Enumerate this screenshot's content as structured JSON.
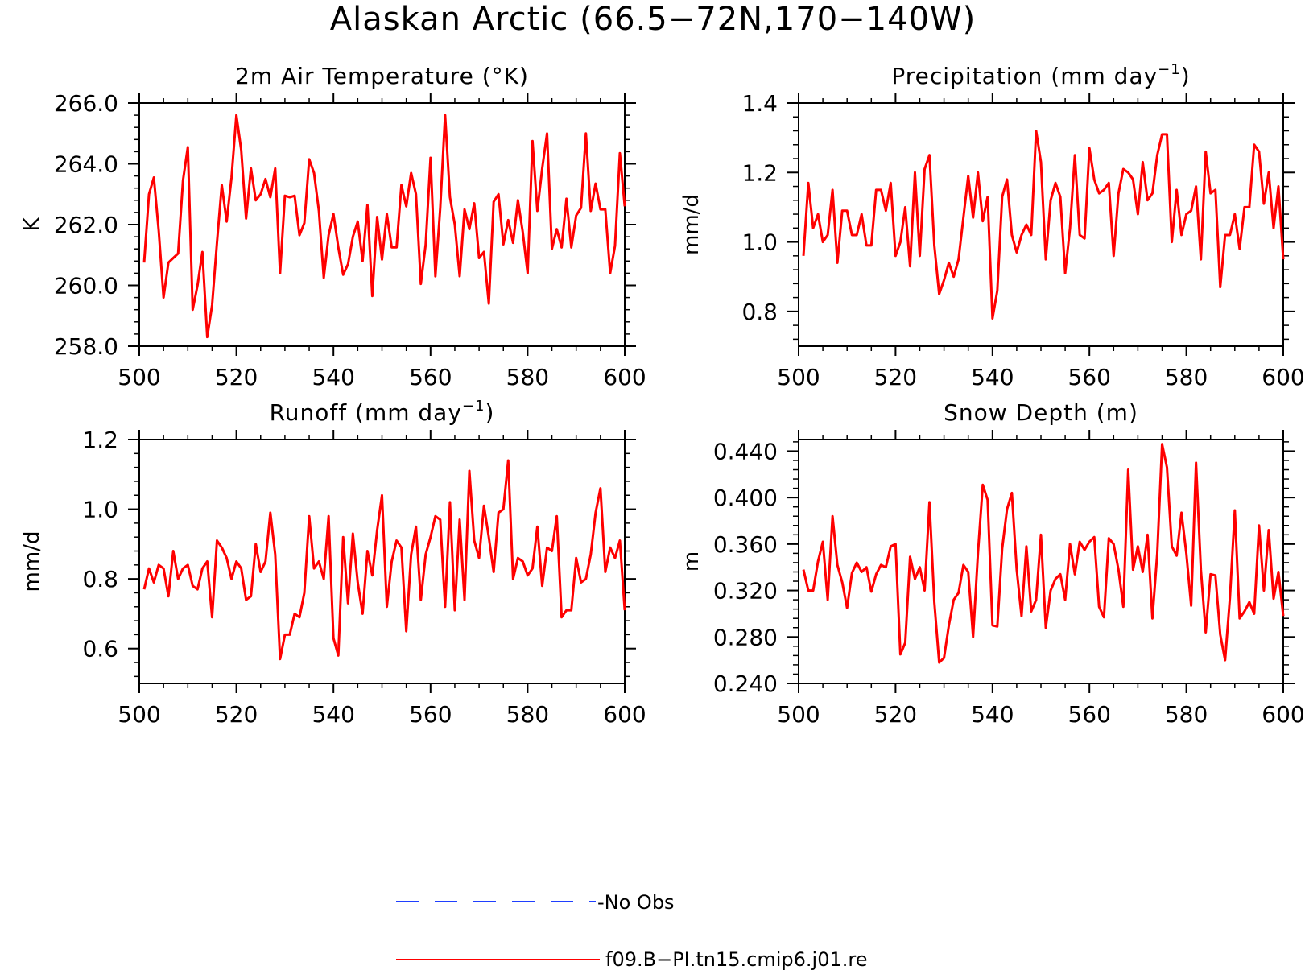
{
  "title": "Alaskan Arctic (66.5−72N,170−140W)",
  "legend": [
    {
      "label": "-No Obs",
      "color": "#1f3fff",
      "dash": true
    },
    {
      "label": "f09.B−PI.tn15.cmip6.j01.re",
      "color": "#ff0000",
      "dash": false
    }
  ],
  "chart_data": [
    {
      "type": "line",
      "title": "2m Air Temperature (°K)",
      "ylabel": "K",
      "xlim": [
        500,
        600
      ],
      "ylim": [
        258,
        266
      ],
      "xticks": [
        500,
        520,
        540,
        560,
        580,
        600
      ],
      "xtick_labels": [
        "500",
        "520",
        "540",
        "560",
        "580",
        "600"
      ],
      "yticks": [
        258,
        260,
        262,
        264,
        266
      ],
      "ytick_labels": [
        "258.0",
        "260.0",
        "262.0",
        "264.0",
        "266.0"
      ],
      "series": [
        {
          "name": "f09.B−PI.tn15.cmip6.j01.re",
          "color": "#ff0000",
          "x_start": 501,
          "values": [
            260.75,
            263.0,
            263.55,
            261.8,
            259.6,
            260.75,
            260.9,
            261.05,
            263.45,
            264.55,
            259.2,
            260.0,
            261.1,
            258.3,
            259.35,
            261.4,
            263.3,
            262.1,
            263.55,
            265.6,
            264.45,
            262.2,
            263.85,
            262.8,
            263.0,
            263.5,
            262.9,
            263.85,
            260.4,
            262.95,
            262.9,
            262.95,
            261.65,
            262.05,
            264.15,
            263.7,
            262.45,
            260.25,
            261.65,
            262.35,
            261.25,
            260.35,
            260.7,
            261.6,
            262.1,
            260.8,
            262.65,
            259.65,
            262.25,
            260.85,
            262.35,
            261.25,
            261.25,
            263.3,
            262.6,
            263.7,
            263.0,
            260.05,
            261.35,
            264.2,
            260.3,
            262.55,
            265.6,
            262.9,
            262.0,
            260.3,
            262.5,
            261.85,
            262.7,
            260.9,
            261.1,
            259.4,
            262.75,
            263.0,
            261.35,
            262.15,
            261.4,
            262.8,
            261.75,
            260.4,
            264.75,
            262.45,
            263.85,
            265.0,
            261.2,
            261.85,
            261.25,
            262.85,
            261.25,
            262.3,
            262.55,
            265.0,
            262.45,
            263.35,
            262.5,
            262.5,
            260.4,
            261.3,
            264.35,
            262.6
          ]
        }
      ]
    },
    {
      "type": "line",
      "title": "Precipitation (mm day−1)",
      "title_text": "Precipitation (mm day",
      "title_sup": "−1",
      "title_close": ")",
      "ylabel": "mm/d",
      "xlim": [
        500,
        600
      ],
      "ylim": [
        0.7,
        1.4
      ],
      "xticks": [
        500,
        520,
        540,
        560,
        580,
        600
      ],
      "xtick_labels": [
        "500",
        "520",
        "540",
        "560",
        "580",
        "600"
      ],
      "yticks": [
        0.8,
        1.0,
        1.2,
        1.4
      ],
      "ytick_labels": [
        "0.8",
        "1.0",
        "1.2",
        "1.4"
      ],
      "series": [
        {
          "name": "f09.B−PI.tn15.cmip6.j01.re",
          "color": "#ff0000",
          "x_start": 501,
          "values": [
            0.96,
            1.17,
            1.04,
            1.08,
            1.0,
            1.02,
            1.15,
            0.94,
            1.09,
            1.09,
            1.02,
            1.02,
            1.08,
            0.99,
            0.99,
            1.15,
            1.15,
            1.09,
            1.17,
            0.96,
            1.0,
            1.1,
            0.93,
            1.2,
            0.96,
            1.21,
            1.25,
            0.99,
            0.85,
            0.89,
            0.94,
            0.9,
            0.95,
            1.07,
            1.19,
            1.07,
            1.2,
            1.06,
            1.13,
            0.78,
            0.86,
            1.13,
            1.18,
            1.02,
            0.97,
            1.02,
            1.05,
            1.02,
            1.32,
            1.23,
            0.95,
            1.12,
            1.17,
            1.13,
            0.91,
            1.04,
            1.25,
            1.02,
            1.01,
            1.27,
            1.18,
            1.14,
            1.15,
            1.17,
            0.96,
            1.14,
            1.21,
            1.2,
            1.18,
            1.08,
            1.23,
            1.12,
            1.14,
            1.25,
            1.31,
            1.31,
            1.0,
            1.15,
            1.02,
            1.08,
            1.09,
            1.16,
            0.95,
            1.26,
            1.14,
            1.15,
            0.87,
            1.02,
            1.02,
            1.08,
            0.98,
            1.1,
            1.1,
            1.28,
            1.26,
            1.11,
            1.2,
            1.04,
            1.16,
            0.95
          ]
        }
      ]
    },
    {
      "type": "line",
      "title": "Runoff (mm day−1)",
      "title_text": "Runoff (mm day",
      "title_sup": "−1",
      "title_close": ")",
      "ylabel": "mm/d",
      "xlim": [
        500,
        600
      ],
      "ylim": [
        0.5,
        1.2
      ],
      "xticks": [
        500,
        520,
        540,
        560,
        580,
        600
      ],
      "xtick_labels": [
        "500",
        "520",
        "540",
        "560",
        "580",
        "600"
      ],
      "yticks": [
        0.6,
        0.8,
        1.0,
        1.2
      ],
      "ytick_labels": [
        "0.6",
        "0.8",
        "1.0",
        "1.2"
      ],
      "series": [
        {
          "name": "f09.B−PI.tn15.cmip6.j01.re",
          "color": "#ff0000",
          "x_start": 501,
          "values": [
            0.77,
            0.83,
            0.79,
            0.84,
            0.83,
            0.75,
            0.88,
            0.8,
            0.83,
            0.84,
            0.78,
            0.77,
            0.83,
            0.85,
            0.69,
            0.91,
            0.89,
            0.86,
            0.8,
            0.85,
            0.83,
            0.74,
            0.75,
            0.9,
            0.82,
            0.85,
            0.99,
            0.87,
            0.57,
            0.64,
            0.64,
            0.7,
            0.69,
            0.76,
            0.98,
            0.83,
            0.85,
            0.8,
            0.98,
            0.63,
            0.58,
            0.92,
            0.73,
            0.93,
            0.79,
            0.7,
            0.88,
            0.81,
            0.94,
            1.04,
            0.72,
            0.85,
            0.91,
            0.89,
            0.65,
            0.87,
            0.95,
            0.74,
            0.87,
            0.92,
            0.98,
            0.97,
            0.72,
            1.02,
            0.71,
            0.97,
            0.74,
            1.11,
            0.91,
            0.86,
            1.01,
            0.92,
            0.82,
            0.99,
            1.0,
            1.14,
            0.8,
            0.86,
            0.85,
            0.81,
            0.83,
            0.95,
            0.78,
            0.89,
            0.88,
            0.98,
            0.69,
            0.71,
            0.71,
            0.86,
            0.79,
            0.8,
            0.87,
            0.99,
            1.06,
            0.82,
            0.89,
            0.86,
            0.91,
            0.71
          ]
        }
      ]
    },
    {
      "type": "line",
      "title": "Snow Depth (m)",
      "ylabel": "m",
      "xlim": [
        500,
        600
      ],
      "ylim": [
        0.24,
        0.45
      ],
      "xticks": [
        500,
        520,
        540,
        560,
        580,
        600
      ],
      "xtick_labels": [
        "500",
        "520",
        "540",
        "560",
        "580",
        "600"
      ],
      "yticks": [
        0.24,
        0.28,
        0.32,
        0.36,
        0.4,
        0.44
      ],
      "ytick_labels": [
        "0.240",
        "0.280",
        "0.320",
        "0.360",
        "0.400",
        "0.440"
      ],
      "series": [
        {
          "name": "f09.B−PI.tn15.cmip6.j01.re",
          "color": "#ff0000",
          "x_start": 501,
          "values": [
            0.338,
            0.32,
            0.32,
            0.345,
            0.362,
            0.312,
            0.384,
            0.342,
            0.327,
            0.305,
            0.335,
            0.344,
            0.336,
            0.34,
            0.319,
            0.334,
            0.342,
            0.34,
            0.358,
            0.36,
            0.265,
            0.275,
            0.349,
            0.33,
            0.34,
            0.32,
            0.396,
            0.31,
            0.258,
            0.262,
            0.29,
            0.312,
            0.318,
            0.342,
            0.336,
            0.28,
            0.352,
            0.411,
            0.398,
            0.29,
            0.289,
            0.356,
            0.39,
            0.404,
            0.338,
            0.298,
            0.358,
            0.302,
            0.312,
            0.368,
            0.288,
            0.32,
            0.33,
            0.334,
            0.312,
            0.36,
            0.334,
            0.362,
            0.355,
            0.362,
            0.366,
            0.306,
            0.297,
            0.365,
            0.36,
            0.338,
            0.306,
            0.424,
            0.338,
            0.358,
            0.336,
            0.368,
            0.296,
            0.352,
            0.446,
            0.426,
            0.358,
            0.35,
            0.387,
            0.352,
            0.307,
            0.43,
            0.338,
            0.284,
            0.334,
            0.333,
            0.282,
            0.26,
            0.314,
            0.389,
            0.296,
            0.302,
            0.31,
            0.3,
            0.376,
            0.32,
            0.372,
            0.313,
            0.336,
            0.298
          ]
        }
      ]
    }
  ]
}
